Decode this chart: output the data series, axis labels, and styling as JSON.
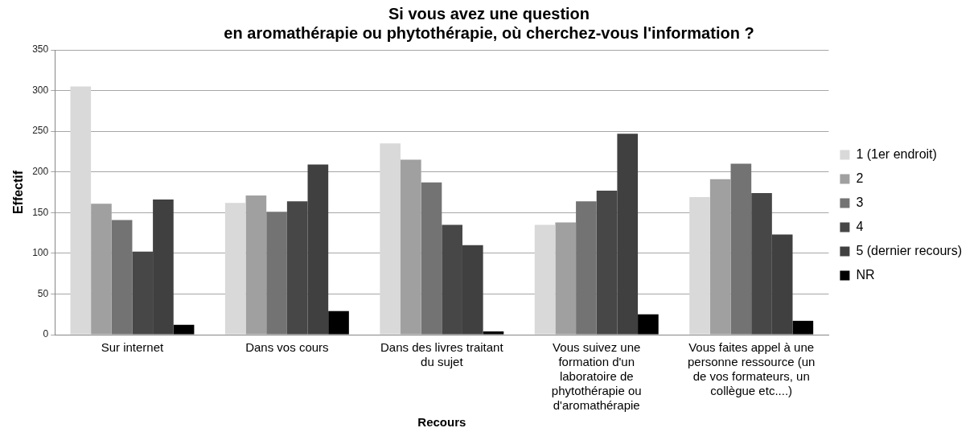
{
  "chart_data": {
    "type": "bar",
    "title": "Si vous avez une question\nen aromathérapie ou phytothérapie, où cherchez-vous l'information ?",
    "xlabel": "Recours",
    "ylabel": "Effectif",
    "categories": [
      "Sur internet",
      "Dans vos cours",
      "Dans des livres traitant du sujet",
      "Vous suivez une formation d'un laboratoire de phytothérapie ou d'aromathérapie",
      "Vous faites appel à une personne ressource (un de vos formateurs, un collègue etc....)"
    ],
    "series": [
      {
        "name": "1 (1er endroit)",
        "color": "#d9d9d9",
        "values": [
          305,
          162,
          235,
          135,
          169
        ]
      },
      {
        "name": "2",
        "color": "#a0a0a0",
        "values": [
          161,
          171,
          215,
          138,
          191
        ]
      },
      {
        "name": "3",
        "color": "#737373",
        "values": [
          141,
          151,
          187,
          164,
          210
        ]
      },
      {
        "name": "4",
        "color": "#474747",
        "values": [
          102,
          164,
          135,
          177,
          174
        ]
      },
      {
        "name": "5 (dernier recours)",
        "color": "#404040",
        "values": [
          166,
          209,
          110,
          247,
          123
        ]
      },
      {
        "name": "NR",
        "color": "#000000",
        "values": [
          12,
          29,
          4,
          25,
          17
        ]
      }
    ],
    "ylim": [
      0,
      350
    ],
    "yticks": [
      0,
      50,
      100,
      150,
      200,
      250,
      300,
      350
    ],
    "grid": "y",
    "legend": "right"
  }
}
